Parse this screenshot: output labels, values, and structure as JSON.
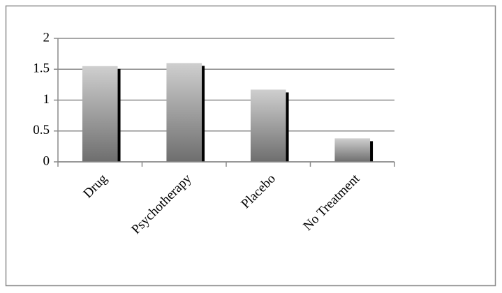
{
  "chart_data": {
    "type": "bar",
    "categories": [
      "Drug",
      "Psychotherapy",
      "Placebo",
      "No Treatment"
    ],
    "values": [
      1.55,
      1.6,
      1.17,
      0.38
    ],
    "color": "#9a9a9a",
    "ylim": [
      0,
      2
    ],
    "yticks": [
      0,
      0.5,
      1,
      1.5,
      2
    ],
    "grid": true
  }
}
